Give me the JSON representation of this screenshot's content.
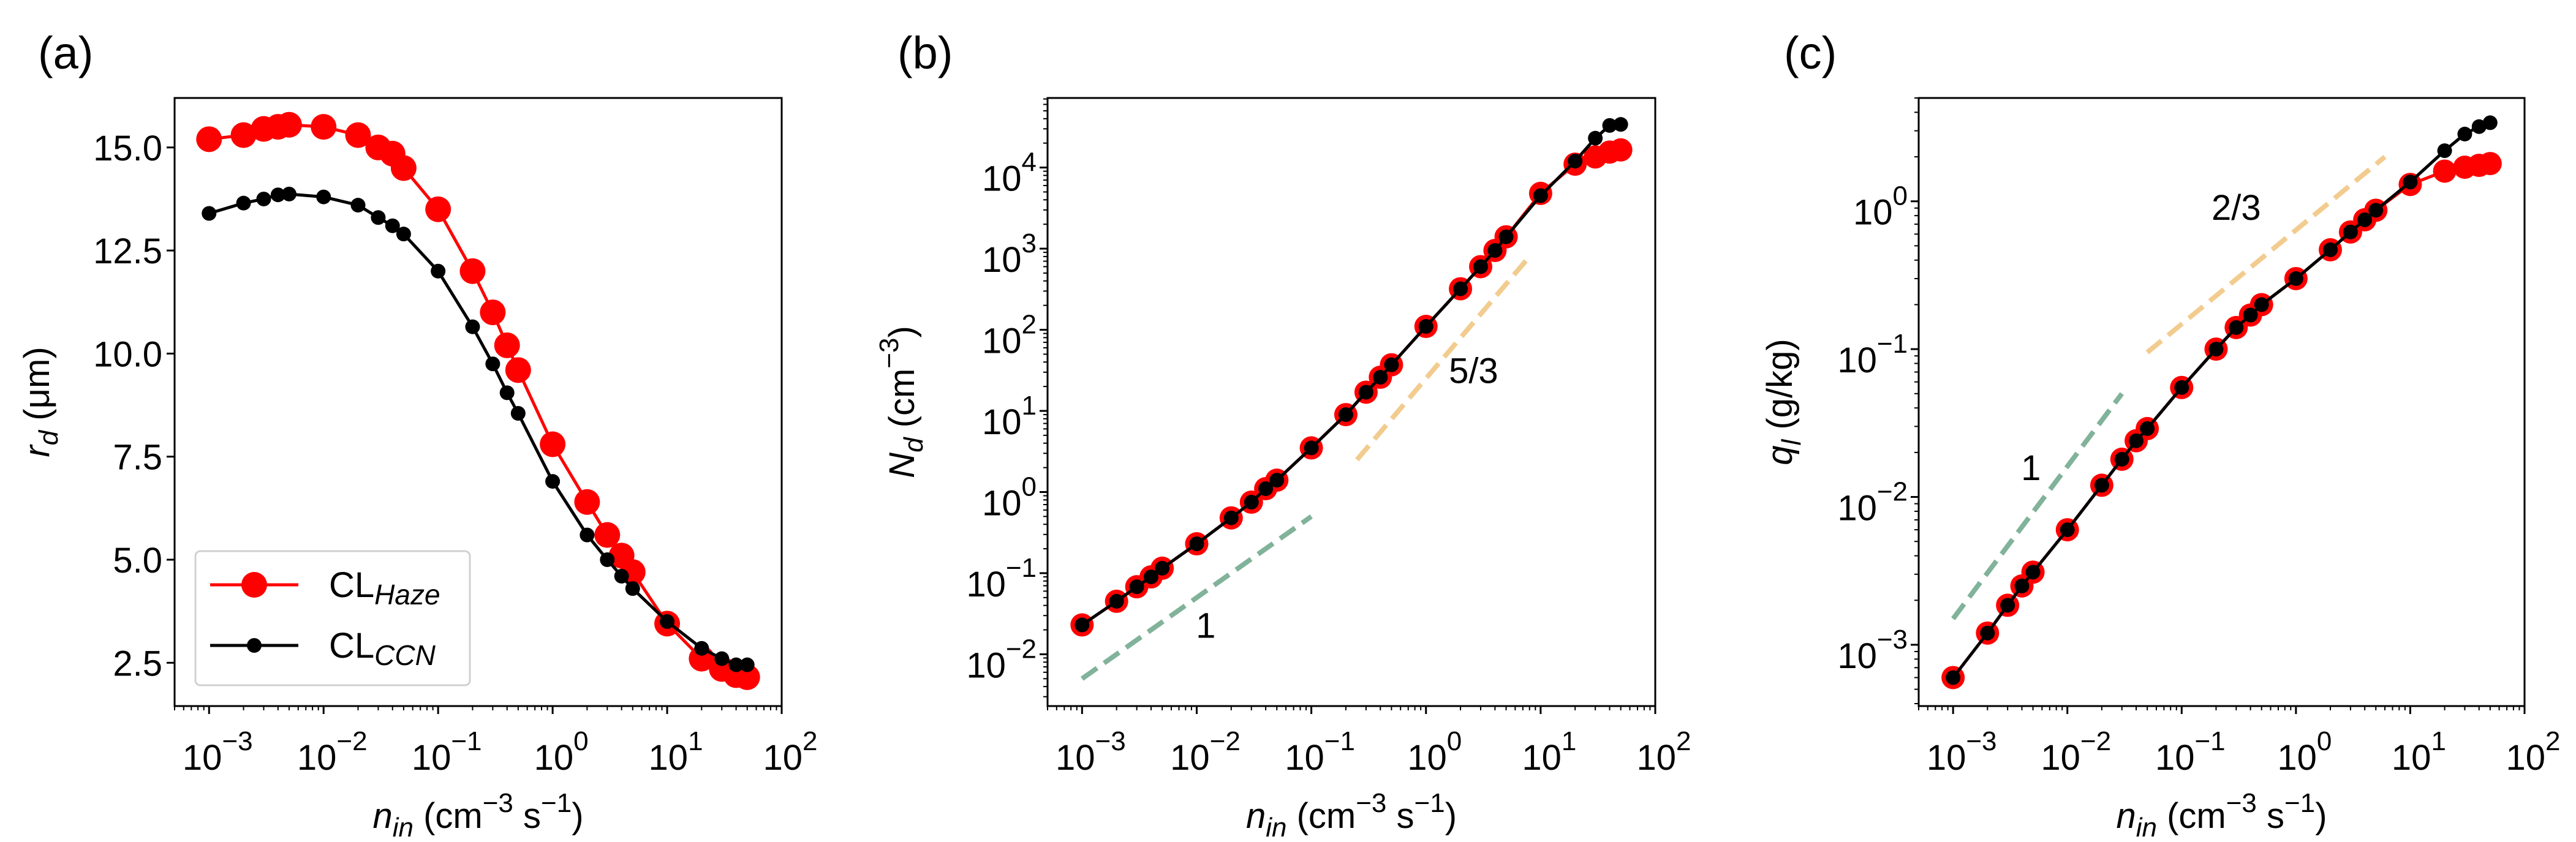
{
  "chart_data": [
    {
      "panel": "(a)",
      "type": "line",
      "xscale": "log",
      "yscale": "linear",
      "xlim": [
        0.0005,
        100
      ],
      "ylim": [
        1.45,
        16.2
      ],
      "xticks": [
        0.001,
        0.01,
        0.1,
        1,
        10,
        100
      ],
      "xtick_labels": [
        "10^−3",
        "10^−2",
        "10^−1",
        "10^0",
        "10^1",
        "10^2"
      ],
      "yticks": [
        2.5,
        5.0,
        7.5,
        10.0,
        12.5,
        15.0
      ],
      "ytick_labels": [
        "2.5",
        "5.0",
        "7.5",
        "10.0",
        "12.5",
        "15.0"
      ],
      "xlabel": [
        {
          "t": "n",
          "i": true
        },
        {
          "t": "in",
          "i": true,
          "sub": true
        },
        {
          "t": " (cm"
        },
        {
          "t": "−3",
          "sup": true
        },
        {
          "t": " s"
        },
        {
          "t": "−1",
          "sup": true
        },
        {
          "t": ")"
        }
      ],
      "ylabel": [
        {
          "t": "r",
          "i": true
        },
        {
          "t": "d",
          "i": true,
          "sub": true
        },
        {
          "t": " (μm)"
        }
      ],
      "x": [
        0.001,
        0.002,
        0.003,
        0.004,
        0.005,
        0.01,
        0.02,
        0.03,
        0.04,
        0.05,
        0.1,
        0.2,
        0.3,
        0.4,
        0.5,
        1,
        2,
        3,
        4,
        5,
        10,
        20,
        30,
        40,
        50
      ],
      "series": [
        {
          "name": "CL_Haze",
          "legend_main": "CL",
          "legend_sub": "Haze",
          "color": "#ff0000",
          "values": [
            15.2,
            15.3,
            15.45,
            15.5,
            15.55,
            15.5,
            15.3,
            15.0,
            14.85,
            14.5,
            13.5,
            12.0,
            11.0,
            10.2,
            9.6,
            7.8,
            6.4,
            5.6,
            5.1,
            4.7,
            3.45,
            2.6,
            2.35,
            2.2,
            2.15
          ]
        },
        {
          "name": "CL_CCN",
          "legend_main": "CL",
          "legend_sub": "CCN",
          "color": "#000000",
          "values": [
            13.4,
            13.65,
            13.75,
            13.85,
            13.87,
            13.8,
            13.6,
            13.3,
            13.1,
            12.9,
            12.0,
            10.65,
            9.75,
            9.05,
            8.55,
            6.9,
            5.6,
            5.0,
            4.6,
            4.3,
            3.5,
            2.85,
            2.6,
            2.45,
            2.45
          ]
        }
      ],
      "legend": "lower-left",
      "reference_lines": []
    },
    {
      "panel": "(b)",
      "type": "line",
      "xscale": "log",
      "yscale": "log",
      "xlim": [
        0.0005,
        100
      ],
      "ylim": [
        0.0023,
        72000
      ],
      "xticks": [
        0.001,
        0.01,
        0.1,
        1,
        10,
        100
      ],
      "xtick_labels": [
        "10^−3",
        "10^−2",
        "10^−1",
        "10^0",
        "10^1",
        "10^2"
      ],
      "yticks": [
        0.01,
        0.1,
        1,
        10,
        100,
        1000,
        10000
      ],
      "ytick_labels": [
        "10^−2",
        "10^−1",
        "10^0",
        "10^1",
        "10^2",
        "10^3",
        "10^4"
      ],
      "xlabel": [
        {
          "t": "n",
          "i": true
        },
        {
          "t": "in",
          "i": true,
          "sub": true
        },
        {
          "t": " (cm"
        },
        {
          "t": "−3",
          "sup": true
        },
        {
          "t": " s"
        },
        {
          "t": "−1",
          "sup": true
        },
        {
          "t": ")"
        }
      ],
      "ylabel": [
        {
          "t": "N",
          "i": true
        },
        {
          "t": "d",
          "i": true,
          "sub": true
        },
        {
          "t": " (cm"
        },
        {
          "t": "−3",
          "sup": true
        },
        {
          "t": ")"
        }
      ],
      "x": [
        0.001,
        0.002,
        0.003,
        0.004,
        0.005,
        0.01,
        0.02,
        0.03,
        0.04,
        0.05,
        0.1,
        0.2,
        0.3,
        0.4,
        0.5,
        1,
        2,
        3,
        4,
        5,
        10,
        20,
        30,
        40,
        50
      ],
      "series": [
        {
          "name": "CL_Haze",
          "color": "#ff0000",
          "values": [
            0.023,
            0.045,
            0.068,
            0.09,
            0.115,
            0.23,
            0.48,
            0.75,
            1.1,
            1.4,
            3.5,
            9,
            17,
            26,
            37,
            110,
            320,
            600,
            950,
            1400,
            4800,
            11000,
            13500,
            15500,
            16500
          ]
        },
        {
          "name": "CL_CCN",
          "color": "#000000",
          "values": [
            0.023,
            0.045,
            0.068,
            0.09,
            0.115,
            0.23,
            0.48,
            0.75,
            1.1,
            1.4,
            3.5,
            9,
            17,
            26,
            37,
            110,
            320,
            600,
            950,
            1400,
            4500,
            12000,
            23000,
            33000,
            34000
          ]
        }
      ],
      "reference_lines": [
        {
          "slope_label": "1",
          "color": "#81b29a",
          "x": [
            0.001,
            0.1
          ],
          "y": [
            0.005,
            0.5
          ],
          "label_at": [
            0.012,
            0.016
          ]
        },
        {
          "slope_label": "5/3",
          "color": "#f2cc8f",
          "x": [
            0.25,
            8
          ],
          "y": [
            2.5,
            800
          ],
          "label_at": [
            2.6,
            22
          ]
        }
      ]
    },
    {
      "panel": "(c)",
      "type": "line",
      "xscale": "log",
      "yscale": "log",
      "xlim": [
        0.0005,
        100
      ],
      "ylim": [
        0.000385,
        5.0
      ],
      "xticks": [
        0.001,
        0.01,
        0.1,
        1,
        10,
        100
      ],
      "xtick_labels": [
        "10^−3",
        "10^−2",
        "10^−1",
        "10^0",
        "10^1",
        "10^2"
      ],
      "yticks": [
        0.001,
        0.01,
        0.1,
        1
      ],
      "ytick_labels": [
        "10^−3",
        "10^−2",
        "10^−1",
        "10^0"
      ],
      "xlabel": [
        {
          "t": "n",
          "i": true
        },
        {
          "t": "in",
          "i": true,
          "sub": true
        },
        {
          "t": " (cm"
        },
        {
          "t": "−3",
          "sup": true
        },
        {
          "t": " s"
        },
        {
          "t": "−1",
          "sup": true
        },
        {
          "t": ")"
        }
      ],
      "ylabel": [
        {
          "t": "q",
          "i": true
        },
        {
          "t": "l",
          "i": true,
          "sub": true
        },
        {
          "t": " (g/kg)"
        }
      ],
      "x": [
        0.001,
        0.002,
        0.003,
        0.004,
        0.005,
        0.01,
        0.02,
        0.03,
        0.04,
        0.05,
        0.1,
        0.2,
        0.3,
        0.4,
        0.5,
        1,
        2,
        3,
        4,
        5,
        10,
        20,
        30,
        40,
        50
      ],
      "series": [
        {
          "name": "CL_Haze",
          "color": "#ff0000",
          "values": [
            0.0006,
            0.0012,
            0.00185,
            0.0025,
            0.0031,
            0.006,
            0.012,
            0.018,
            0.024,
            0.029,
            0.055,
            0.1,
            0.14,
            0.17,
            0.2,
            0.3,
            0.47,
            0.62,
            0.75,
            0.87,
            1.3,
            1.6,
            1.7,
            1.75,
            1.8
          ]
        },
        {
          "name": "CL_CCN",
          "color": "#000000",
          "values": [
            0.0006,
            0.0012,
            0.00185,
            0.0025,
            0.0031,
            0.006,
            0.012,
            0.018,
            0.024,
            0.029,
            0.055,
            0.1,
            0.14,
            0.17,
            0.2,
            0.3,
            0.47,
            0.62,
            0.75,
            0.87,
            1.35,
            2.2,
            2.85,
            3.2,
            3.4
          ]
        }
      ],
      "reference_lines": [
        {
          "slope_label": "1",
          "color": "#81b29a",
          "x": [
            0.001,
            0.03
          ],
          "y": [
            0.0015,
            0.05
          ],
          "label_at": [
            0.0048,
            0.013
          ]
        },
        {
          "slope_label": "2/3",
          "color": "#f2cc8f",
          "x": [
            0.05,
            6
          ],
          "y": [
            0.095,
            2.0
          ],
          "label_at": [
            0.3,
            0.75
          ]
        }
      ]
    }
  ]
}
